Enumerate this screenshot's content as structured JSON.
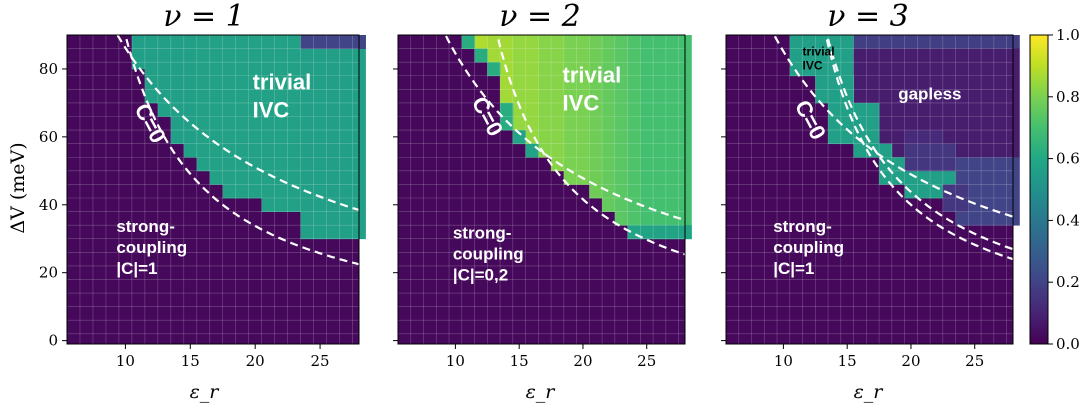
{
  "chart_data": [
    {
      "type": "heatmap",
      "title": "ν = 1",
      "xlabel": "ε_r",
      "ylabel": "ΔV (meV)",
      "xlim": [
        5.5,
        28
      ],
      "ylim": [
        -1,
        90
      ],
      "x_ticks": [
        10,
        15,
        20,
        25
      ],
      "y_ticks": [
        0,
        20,
        40,
        60,
        80
      ],
      "cell_columns": {
        "eps_r": [
          6,
          7,
          8,
          9,
          10,
          11,
          12,
          13,
          14,
          15,
          16,
          17,
          18,
          19,
          20,
          21,
          22,
          23,
          24,
          25,
          26,
          27,
          28
        ],
        "thresholds_meV": [
          90,
          90,
          90,
          90,
          90,
          80,
          70,
          66,
          58,
          54,
          50,
          46,
          42,
          42,
          42,
          38,
          38,
          38,
          30,
          30,
          30,
          30,
          30
        ],
        "values": [
          0.02,
          0.02,
          0.02,
          0.02,
          0.02,
          0.56,
          0.56,
          0.56,
          0.56,
          0.56,
          0.57,
          0.57,
          0.57,
          0.57,
          0.57,
          0.57,
          0.57,
          0.57,
          0.56,
          0.56,
          0.56,
          0.56,
          0.56
        ],
        "top_overrides": [
          {
            "eps_from": 24,
            "eps_to": 28,
            "dv_from": 86,
            "value": 0.2
          }
        ]
      },
      "background_value": 0.02,
      "boundaries": [
        {
          "name": "C=0 outer",
          "A": 1250,
          "eps0": -4.5
        },
        {
          "name": "C=0 inner",
          "A": 540,
          "eps0": 4
        }
      ],
      "annotations": [
        {
          "lines": [
            "trivial",
            "IVC"
          ],
          "color": "white",
          "anchor_eps": 19.8,
          "anchor_dv": 74
        },
        {
          "lines": [
            "C=0"
          ],
          "color": "white",
          "rotated": true,
          "anchor_eps": 11.4,
          "anchor_dv": 63
        },
        {
          "lines": [
            "strong-",
            "coupling",
            "|C|=1"
          ],
          "color": "white",
          "anchor_eps": 9.3,
          "anchor_dv": 32
        }
      ]
    },
    {
      "type": "heatmap",
      "title": "ν = 2",
      "xlabel": "ε_r",
      "xlim": [
        5.5,
        28
      ],
      "ylim": [
        -1,
        90
      ],
      "x_ticks": [
        10,
        15,
        20,
        25
      ],
      "cell_columns": {
        "eps_r": [
          6,
          7,
          8,
          9,
          10,
          11,
          12,
          13,
          14,
          15,
          16,
          17,
          18,
          19,
          20,
          21,
          22,
          23,
          24,
          25,
          26,
          27,
          28
        ],
        "thresholds_meV": [
          90,
          90,
          90,
          90,
          90,
          90,
          86,
          82,
          66,
          58,
          58,
          54,
          50,
          46,
          46,
          42,
          38,
          34,
          30,
          30,
          30,
          30,
          30
        ],
        "values": [
          0.02,
          0.02,
          0.02,
          0.02,
          0.02,
          0.88,
          0.88,
          0.86,
          0.86,
          0.84,
          0.84,
          0.82,
          0.82,
          0.8,
          0.8,
          0.78,
          0.76,
          0.74,
          0.72,
          0.7,
          0.7,
          0.7,
          0.7
        ],
        "patches": [
          {
            "eps_from": 11,
            "eps_to": 11,
            "dv_from": 86,
            "dv_to": 90,
            "value": 0.62
          },
          {
            "eps_from": 12,
            "eps_to": 12,
            "dv_from": 82,
            "dv_to": 86,
            "value": 0.62
          },
          {
            "eps_from": 13,
            "eps_to": 13,
            "dv_from": 78,
            "dv_to": 82,
            "value": 0.62
          },
          {
            "eps_from": 14,
            "eps_to": 14,
            "dv_from": 62,
            "dv_to": 70,
            "value": 0.62
          },
          {
            "eps_from": 15,
            "eps_to": 15,
            "dv_from": 58,
            "dv_to": 62,
            "value": 0.58
          },
          {
            "eps_from": 16,
            "eps_to": 16,
            "dv_from": 54,
            "dv_to": 58,
            "value": 0.58
          },
          {
            "eps_from": 24,
            "eps_to": 28,
            "dv_from": 30,
            "dv_to": 34,
            "value": 0.58
          }
        ]
      },
      "background_value": 0.02,
      "boundaries": [
        {
          "name": "C=0 outer",
          "A": 1100,
          "eps0": -3
        },
        {
          "name": "C=0 inner",
          "A": 520,
          "eps0": 7.5
        }
      ],
      "annotations": [
        {
          "lines": [
            "trivial",
            "IVC"
          ],
          "color": "white",
          "anchor_eps": 18.4,
          "anchor_dv": 76
        },
        {
          "lines": [
            "C=0"
          ],
          "color": "white",
          "rotated": true,
          "anchor_eps": 12.0,
          "anchor_dv": 65
        },
        {
          "lines": [
            "strong-",
            "coupling",
            "|C|=0,2"
          ],
          "color": "white",
          "anchor_eps": 9.8,
          "anchor_dv": 30
        }
      ]
    },
    {
      "type": "heatmap",
      "title": "ν = 3",
      "xlabel": "ε_r",
      "xlim": [
        5.5,
        28
      ],
      "ylim": [
        -1,
        90
      ],
      "x_ticks": [
        10,
        15,
        20,
        25
      ],
      "rects": [
        {
          "eps_from": 11,
          "eps_to": 15,
          "dv_from": 78,
          "dv_to": 90,
          "value": 0.56
        },
        {
          "eps_from": 16,
          "eps_to": 28,
          "dv_from": 86,
          "dv_to": 90,
          "value": 0.18
        },
        {
          "eps_from": 16,
          "eps_to": 28,
          "dv_from": 54,
          "dv_to": 86,
          "value": 0.08
        },
        {
          "eps_from": 13,
          "eps_to": 15,
          "dv_from": 70,
          "dv_to": 78,
          "value": 0.56
        },
        {
          "eps_from": 14,
          "eps_to": 17,
          "dv_from": 58,
          "dv_to": 70,
          "value": 0.56
        },
        {
          "eps_from": 16,
          "eps_to": 18,
          "dv_from": 54,
          "dv_to": 58,
          "value": 0.56
        },
        {
          "eps_from": 18,
          "eps_to": 20,
          "dv_from": 46,
          "dv_to": 54,
          "value": 0.56
        },
        {
          "eps_from": 20,
          "eps_to": 23,
          "dv_from": 42,
          "dv_to": 50,
          "value": 0.56
        },
        {
          "eps_from": 20,
          "eps_to": 23,
          "dv_from": 50,
          "dv_to": 58,
          "value": 0.16
        },
        {
          "eps_from": 24,
          "eps_to": 28,
          "dv_from": 34,
          "dv_to": 54,
          "value": 0.2
        },
        {
          "eps_from": 23,
          "eps_to": 24,
          "dv_from": 38,
          "dv_to": 46,
          "value": 0.16
        },
        {
          "eps_from": 20,
          "eps_to": 22,
          "dv_from": 58,
          "dv_to": 62,
          "value": 0.12
        }
      ],
      "background_value": 0.02,
      "boundaries": [
        {
          "name": "C=0 outer",
          "A": 1150,
          "eps0": -3.5
        },
        {
          "name": "C=0 inner",
          "A": 480,
          "eps0": 8
        },
        {
          "name": "gapless",
          "A": 560,
          "eps0": 7.2,
          "eps_from": 13.5
        }
      ],
      "annotations": [
        {
          "lines": [
            "trivial",
            "IVC"
          ],
          "color": "black",
          "small": true,
          "anchor_eps": 11.5,
          "anchor_dv": 84
        },
        {
          "lines": [
            "gapless"
          ],
          "color": "white",
          "anchor_eps": 19,
          "anchor_dv": 71
        },
        {
          "lines": [
            "C=0"
          ],
          "color": "white",
          "rotated": true,
          "anchor_eps": 11.6,
          "anchor_dv": 64
        },
        {
          "lines": [
            "strong-",
            "coupling",
            "|C|=1"
          ],
          "color": "white",
          "anchor_eps": 9.2,
          "anchor_dv": 32
        }
      ]
    }
  ],
  "colorbar": {
    "colormap": "viridis",
    "min": 0.0,
    "max": 1.0,
    "tick_labels": [
      "0.0",
      "0.2",
      "0.4",
      "0.6",
      "0.8",
      "1.0"
    ]
  }
}
